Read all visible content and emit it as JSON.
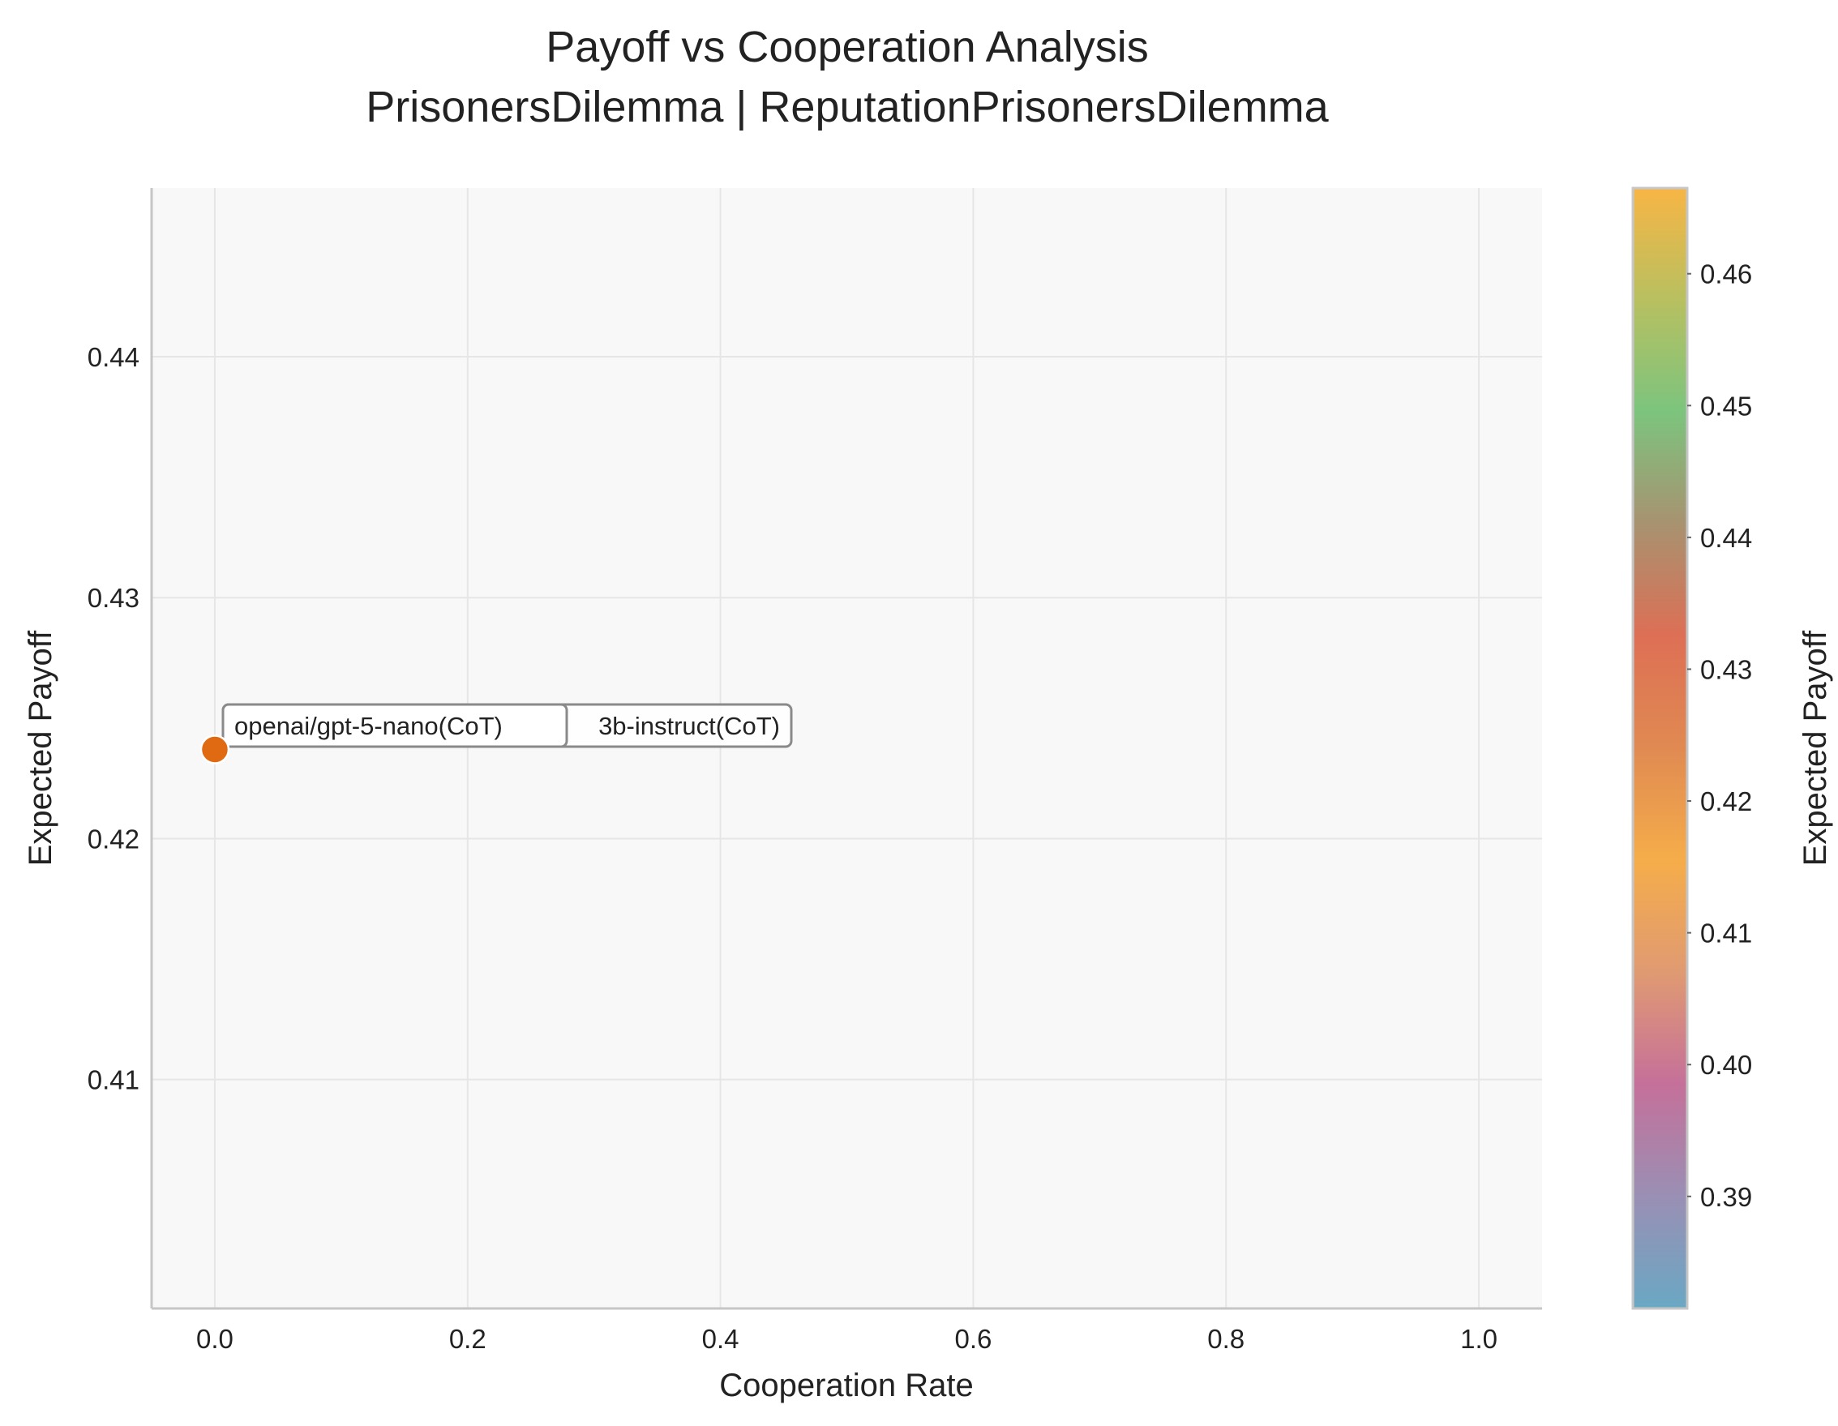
{
  "chart_data": {
    "type": "scatter",
    "title": "Payoff vs Cooperation Analysis",
    "subtitle": "PrisonersDilemma | ReputationPrisonersDilemma",
    "xlabel": "Cooperation Rate",
    "ylabel": "Expected Payoff",
    "xlim": [
      -0.05,
      1.05
    ],
    "ylim": [
      0.4005,
      0.447
    ],
    "xticks": [
      "0.0",
      "0.2",
      "0.4",
      "0.6",
      "0.8",
      "1.0"
    ],
    "yticks": [
      "0.41",
      "0.42",
      "0.43",
      "0.44"
    ],
    "grid": true,
    "points": [
      {
        "x": 0.0,
        "y": 0.4237,
        "label": "openai/gpt-5-nano(CoT)",
        "color": "#e06a12"
      }
    ],
    "overlapping_annotation": {
      "visible_text": "3b-instruct(CoT)"
    },
    "colorbar": {
      "label": "Expected Payoff",
      "range": [
        0.3815,
        0.4665
      ],
      "ticks": [
        "0.39",
        "0.40",
        "0.41",
        "0.42",
        "0.43",
        "0.44",
        "0.45",
        "0.46"
      ],
      "colors": [
        "#6aa8c4",
        "#9a8fb4",
        "#c5709a",
        "#e09a72",
        "#f5ad4a",
        "#e08a52",
        "#dd6f55",
        "#a89270",
        "#7cc47e",
        "#b8c060",
        "#f8b545"
      ]
    }
  }
}
